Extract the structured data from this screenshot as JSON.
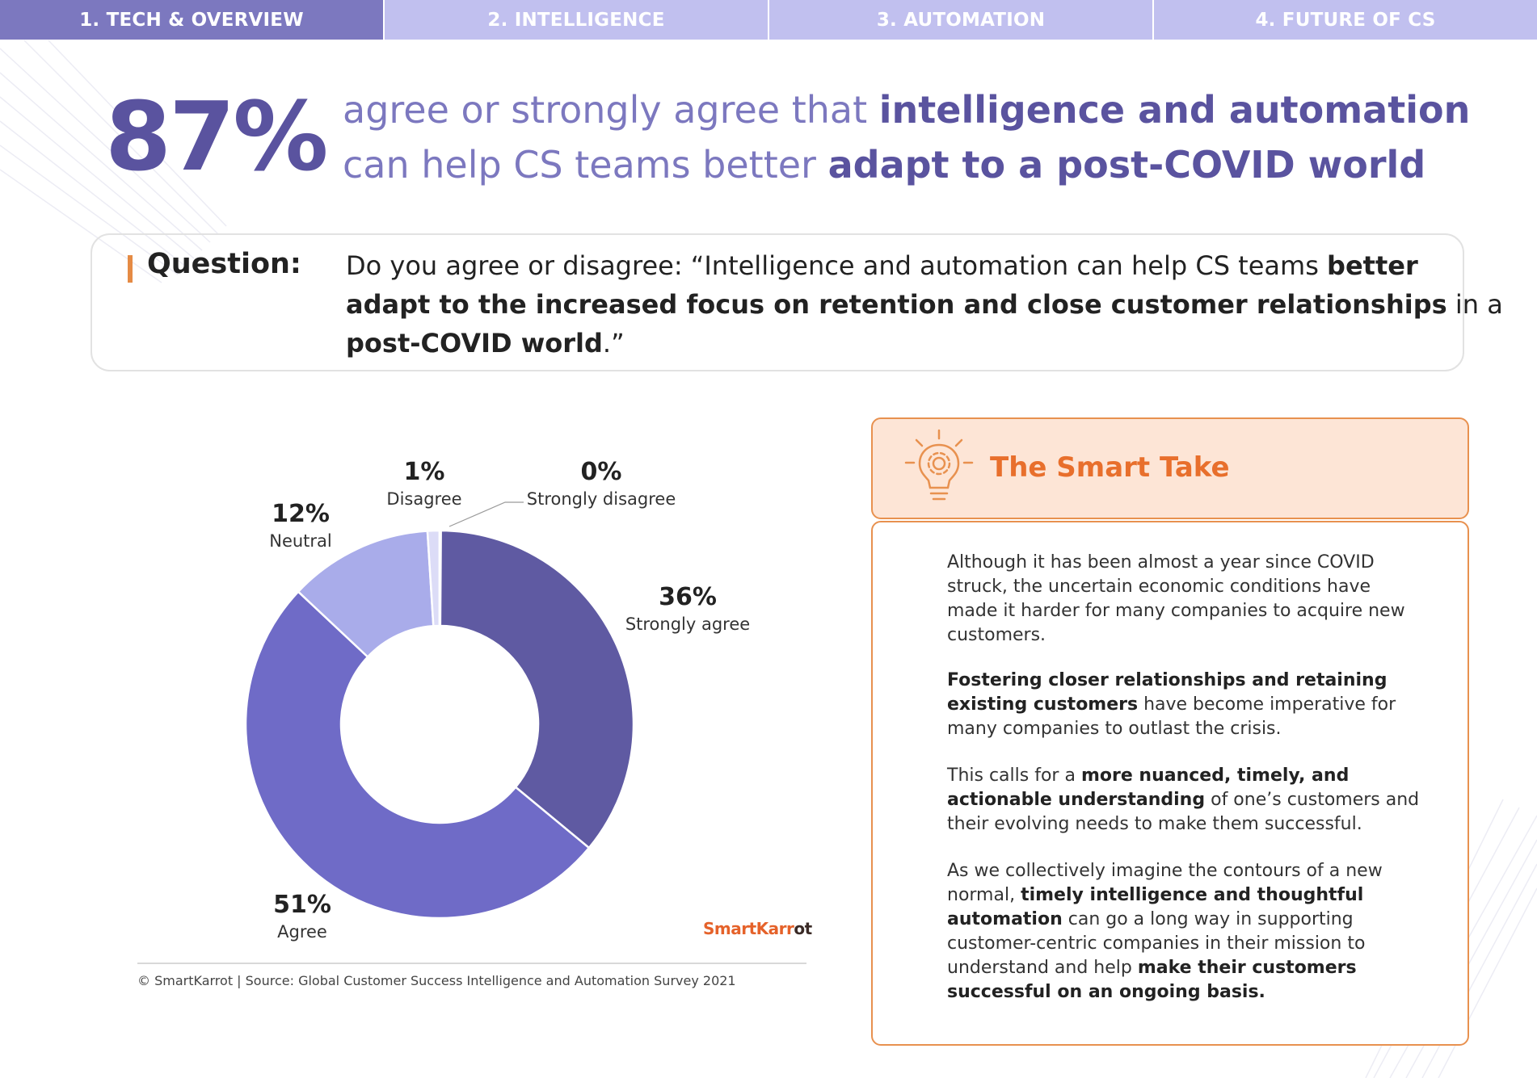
{
  "tabs": [
    {
      "label": "1. TECH & OVERVIEW",
      "active": true
    },
    {
      "label": "2. INTELLIGENCE",
      "active": false
    },
    {
      "label": "3. AUTOMATION",
      "active": false
    },
    {
      "label": "4. FUTURE OF CS",
      "active": false
    }
  ],
  "headline": {
    "stat": "87%",
    "line1_prefix": "agree or strongly agree that ",
    "line1_bold": "intelligence and automation",
    "line2_prefix": "can help CS teams better ",
    "line2_bold": "adapt to a post-COVID world"
  },
  "question": {
    "label": "Question:",
    "l1_text": "Do you agree or disagree: “Intelligence and automation can help CS teams ",
    "l1_bold": "better",
    "l2_bold": "adapt to the increased focus on retention and close customer relationships",
    "l2_text": " in a",
    "l3_bold": "post-COVID world",
    "l3_text": ".”"
  },
  "chart_data": {
    "type": "pie",
    "donut": true,
    "categories": [
      "Strongly agree",
      "Agree",
      "Neutral",
      "Disagree",
      "Strongly disagree"
    ],
    "values": [
      36,
      51,
      12,
      1,
      0
    ],
    "value_labels": [
      "36%",
      "51%",
      "12%",
      "1%",
      "0%"
    ],
    "colors": [
      "#5f5aa2",
      "#6f6bc7",
      "#a9acea",
      "#dcdcf7",
      "#4a4a7a"
    ]
  },
  "chart_footer": {
    "brand_part1": "SmartKarr",
    "brand_part2": "ot",
    "source": "© SmartKarrot | Source: Global Customer Success Intelligence and Automation Survey 2021"
  },
  "smart_take": {
    "title": "The Smart Take",
    "icon": "lightbulb-gear-icon",
    "p1": {
      "l1": "Although it has been almost a year since COVID",
      "l2": "struck, the uncertain economic conditions have",
      "l3": "made it harder for many companies to acquire new",
      "l4": "customers."
    },
    "p2": {
      "l1_bold": "Fostering closer relationships and retaining",
      "l2_bold": "existing customers",
      "l2_text": " have become imperative for",
      "l3": "many companies to outlast the crisis."
    },
    "p3": {
      "l1_text": "This calls for a ",
      "l1_bold": "more nuanced, timely, and",
      "l2_bold": "actionable understanding",
      "l2_text": " of one’s customers and",
      "l3": "their evolving needs to make them successful."
    },
    "p4": {
      "l1": "As we collectively imagine the contours of a new",
      "l2_text": "normal, ",
      "l2_bold": "timely intelligence and thoughtful",
      "l3_bold": "automation",
      "l3_text": " can go a long way in supporting",
      "l4": "customer-centric companies in their mission to",
      "l5_text": "understand and help ",
      "l5_bold": "make their customers",
      "l6_bold": "successful on an ongoing basis."
    }
  },
  "theme": {
    "accent_purple": "#5a539f",
    "light_purple": "#7c78bf",
    "orange": "#e8914f"
  }
}
